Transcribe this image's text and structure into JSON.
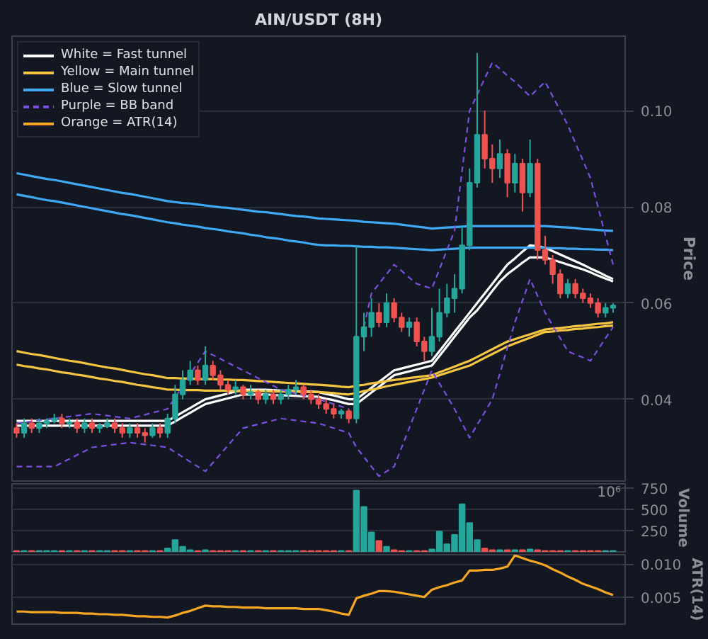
{
  "chart_data": [
    {
      "type": "candlestick",
      "title": "AIN/USDT (8H)",
      "ylabel": "Price",
      "legend": "top left",
      "grid": "y",
      "tick_labels": "y",
      "categories": [
        null,
        null,
        null,
        null,
        null,
        null,
        null,
        null,
        null,
        null,
        null,
        null,
        null,
        null,
        null,
        null,
        null,
        null,
        null,
        null,
        null,
        null,
        null,
        null,
        null,
        null,
        null,
        null,
        null,
        null,
        null,
        null,
        null,
        null,
        null,
        null,
        null,
        null,
        null,
        null,
        null,
        null,
        null,
        null,
        null,
        null,
        null,
        null,
        null,
        null,
        null,
        null,
        null,
        null,
        null,
        null,
        null,
        null,
        null,
        null,
        null,
        null,
        null,
        null,
        null,
        null,
        null,
        null,
        null,
        null,
        null,
        null,
        null,
        null,
        null,
        null,
        null,
        null,
        null,
        null
      ],
      "ylim": [
        0.023,
        0.1155
      ],
      "yticks": [
        0.04,
        0.06,
        0.08,
        {
          "value": 0.1,
          "label": "0.10"
        }
      ],
      "ohlc": [
        [
          0.034,
          0.035,
          0.032,
          0.033
        ],
        [
          0.033,
          0.036,
          0.032,
          0.035
        ],
        [
          0.035,
          0.036,
          0.033,
          0.034
        ],
        [
          0.034,
          0.036,
          0.033,
          0.035
        ],
        [
          0.035,
          0.036,
          0.034,
          0.0355
        ],
        [
          0.0355,
          0.037,
          0.035,
          0.036
        ],
        [
          0.036,
          0.037,
          0.034,
          0.035
        ],
        [
          0.035,
          0.036,
          0.034,
          0.0352
        ],
        [
          0.0352,
          0.036,
          0.033,
          0.034
        ],
        [
          0.034,
          0.036,
          0.033,
          0.035
        ],
        [
          0.035,
          0.036,
          0.033,
          0.034
        ],
        [
          0.034,
          0.035,
          0.033,
          0.0345
        ],
        [
          0.0345,
          0.036,
          0.034,
          0.035
        ],
        [
          0.035,
          0.036,
          0.033,
          0.034
        ],
        [
          0.034,
          0.035,
          0.032,
          0.033
        ],
        [
          0.033,
          0.035,
          0.032,
          0.034
        ],
        [
          0.034,
          0.035,
          0.032,
          0.033
        ],
        [
          0.033,
          0.034,
          0.031,
          0.0325
        ],
        [
          0.0325,
          0.035,
          0.032,
          0.034
        ],
        [
          0.034,
          0.035,
          0.032,
          0.033
        ],
        [
          0.033,
          0.037,
          0.032,
          0.036
        ],
        [
          0.036,
          0.043,
          0.035,
          0.041
        ],
        [
          0.041,
          0.046,
          0.04,
          0.044
        ],
        [
          0.044,
          0.048,
          0.043,
          0.046
        ],
        [
          0.046,
          0.047,
          0.043,
          0.044
        ],
        [
          0.044,
          0.051,
          0.043,
          0.047
        ],
        [
          0.047,
          0.048,
          0.044,
          0.045
        ],
        [
          0.045,
          0.046,
          0.042,
          0.043
        ],
        [
          0.043,
          0.044,
          0.041,
          0.042
        ],
        [
          0.042,
          0.044,
          0.041,
          0.0425
        ],
        [
          0.0425,
          0.043,
          0.04,
          0.041
        ],
        [
          0.041,
          0.043,
          0.04,
          0.0415
        ],
        [
          0.0415,
          0.042,
          0.039,
          0.04
        ],
        [
          0.04,
          0.042,
          0.039,
          0.041
        ],
        [
          0.041,
          0.042,
          0.039,
          0.04
        ],
        [
          0.04,
          0.042,
          0.039,
          0.041
        ],
        [
          0.041,
          0.043,
          0.04,
          0.042
        ],
        [
          0.042,
          0.044,
          0.041,
          0.0425
        ],
        [
          0.0425,
          0.043,
          0.04,
          0.041
        ],
        [
          0.041,
          0.042,
          0.039,
          0.04
        ],
        [
          0.04,
          0.041,
          0.038,
          0.039
        ],
        [
          0.039,
          0.04,
          0.037,
          0.038
        ],
        [
          0.038,
          0.039,
          0.036,
          0.037
        ],
        [
          0.037,
          0.038,
          0.036,
          0.0375
        ],
        [
          0.0375,
          0.038,
          0.035,
          0.036
        ],
        [
          0.036,
          0.072,
          0.035,
          0.053
        ],
        [
          0.053,
          0.058,
          0.05,
          0.055
        ],
        [
          0.055,
          0.061,
          0.053,
          0.058
        ],
        [
          0.058,
          0.06,
          0.055,
          0.056
        ],
        [
          0.056,
          0.062,
          0.055,
          0.06
        ],
        [
          0.06,
          0.061,
          0.056,
          0.057
        ],
        [
          0.057,
          0.058,
          0.054,
          0.055
        ],
        [
          0.055,
          0.057,
          0.053,
          0.056
        ],
        [
          0.056,
          0.057,
          0.051,
          0.052
        ],
        [
          0.052,
          0.053,
          0.048,
          0.05
        ],
        [
          0.05,
          0.059,
          0.049,
          0.053
        ],
        [
          0.053,
          0.063,
          0.052,
          0.058
        ],
        [
          0.058,
          0.064,
          0.057,
          0.061
        ],
        [
          0.061,
          0.066,
          0.058,
          0.063
        ],
        [
          0.063,
          0.076,
          0.062,
          0.072
        ],
        [
          0.072,
          0.088,
          0.071,
          0.085
        ],
        [
          0.085,
          0.112,
          0.084,
          0.095
        ],
        [
          0.095,
          0.1,
          0.088,
          0.09
        ],
        [
          0.09,
          0.093,
          0.085,
          0.088
        ],
        [
          0.088,
          0.094,
          0.086,
          0.091
        ],
        [
          0.091,
          0.092,
          0.082,
          0.085
        ],
        [
          0.085,
          0.091,
          0.083,
          0.089
        ],
        [
          0.089,
          0.09,
          0.079,
          0.083
        ],
        [
          0.083,
          0.094,
          0.082,
          0.089
        ],
        [
          0.089,
          0.09,
          0.069,
          0.071
        ],
        [
          0.071,
          0.074,
          0.068,
          0.069
        ],
        [
          0.069,
          0.07,
          0.064,
          0.066
        ],
        [
          0.066,
          0.067,
          0.061,
          0.062
        ],
        [
          0.062,
          0.065,
          0.061,
          0.064
        ],
        [
          0.064,
          0.065,
          0.061,
          0.062
        ],
        [
          0.062,
          0.063,
          0.06,
          0.061
        ],
        [
          0.061,
          0.062,
          0.059,
          0.06
        ],
        [
          0.06,
          0.061,
          0.057,
          0.058
        ],
        [
          0.058,
          0.06,
          0.057,
          0.059
        ],
        [
          0.059,
          0.06,
          0.058,
          0.0595
        ]
      ],
      "colors": [
        "#ef5350",
        "#26a69a",
        "#ef5350",
        "#26a69a",
        "#26a69a",
        "#26a69a",
        "#ef5350",
        "#26a69a",
        "#ef5350",
        "#26a69a",
        "#ef5350",
        "#26a69a",
        "#26a69a",
        "#ef5350",
        "#ef5350",
        "#26a69a",
        "#ef5350",
        "#ef5350",
        "#26a69a",
        "#ef5350",
        "#26a69a",
        "#26a69a",
        "#26a69a",
        "#26a69a",
        "#ef5350",
        "#26a69a",
        "#ef5350",
        "#ef5350",
        "#ef5350",
        "#26a69a",
        "#ef5350",
        "#26a69a",
        "#ef5350",
        "#26a69a",
        "#ef5350",
        "#26a69a",
        "#26a69a",
        "#26a69a",
        "#ef5350",
        "#ef5350",
        "#ef5350",
        "#ef5350",
        "#ef5350",
        "#26a69a",
        "#ef5350",
        "#26a69a",
        "#26a69a",
        "#26a69a",
        "#ef5350",
        "#26a69a",
        "#ef5350",
        "#ef5350",
        "#26a69a",
        "#ef5350",
        "#ef5350",
        "#26a69a",
        "#26a69a",
        "#26a69a",
        "#26a69a",
        "#26a69a",
        "#26a69a",
        "#26a69a",
        "#ef5350",
        "#ef5350",
        "#26a69a",
        "#ef5350",
        "#26a69a",
        "#ef5350",
        "#26a69a",
        "#ef5350",
        "#ef5350",
        "#ef5350",
        "#ef5350",
        "#26a69a",
        "#ef5350",
        "#ef5350",
        "#ef5350",
        "#ef5350",
        "#26a69a",
        "#26a69a"
      ],
      "series": [
        {
          "type": "line",
          "name": "White = Fast tunnel",
          "color": "#ffffff",
          "line_style": "solid",
          "values": [
            0.0355,
            0.0355,
            0.0355,
            0.0355,
            0.0355,
            0.0355,
            0.0355,
            0.0355,
            0.0355,
            0.0355,
            0.0355,
            0.0355,
            0.0355,
            0.0355,
            0.0355,
            0.0355,
            0.0355,
            0.0355,
            0.0355,
            0.0355,
            0.0355,
            0.0364,
            0.0373,
            0.0382,
            0.0391,
            0.04,
            0.0404,
            0.0408,
            0.0412,
            0.0416,
            0.042,
            0.042,
            0.042,
            0.042,
            0.0419,
            0.0418,
            0.0418,
            0.0417,
            0.0416,
            0.0416,
            0.0415,
            0.0411,
            0.0408,
            0.0404,
            0.04,
            0.04,
            0.0412,
            0.0424,
            0.0436,
            0.0448,
            0.046,
            0.0464,
            0.0468,
            0.0472,
            0.0476,
            0.048,
            0.05,
            0.052,
            0.054,
            0.056,
            0.058,
            0.06,
            0.062,
            0.064,
            0.066,
            0.068,
            0.0693,
            0.0707,
            0.072,
            0.0718,
            0.0715,
            0.0708,
            0.0701,
            0.0694,
            0.0687,
            0.068,
            0.0672,
            0.0665,
            0.0657,
            0.065
          ]
        },
        {
          "type": "line",
          "color": "#ffffff",
          "line_style": "solid",
          "values": [
            0.0345,
            0.0345,
            0.0345,
            0.0345,
            0.0345,
            0.0345,
            0.0345,
            0.0345,
            0.0345,
            0.0345,
            0.0345,
            0.0345,
            0.0345,
            0.0345,
            0.0345,
            0.0345,
            0.0345,
            0.0345,
            0.0345,
            0.0345,
            0.0345,
            0.0354,
            0.0363,
            0.0372,
            0.0381,
            0.039,
            0.0394,
            0.0398,
            0.0402,
            0.0406,
            0.041,
            0.041,
            0.041,
            0.041,
            0.0409,
            0.0408,
            0.0408,
            0.0407,
            0.0406,
            0.0406,
            0.0405,
            0.0401,
            0.0398,
            0.0394,
            0.039,
            0.039,
            0.0402,
            0.0414,
            0.0426,
            0.0438,
            0.045,
            0.0454,
            0.0458,
            0.0462,
            0.0466,
            0.047,
            0.049,
            0.051,
            0.053,
            0.055,
            0.057,
            0.0585,
            0.0605,
            0.0625,
            0.0645,
            0.066,
            0.0672,
            0.0684,
            0.0695,
            0.0695,
            0.0695,
            0.069,
            0.0685,
            0.068,
            0.0675,
            0.067,
            0.0664,
            0.0657,
            0.0651,
            0.0645
          ]
        },
        {
          "type": "line",
          "name": "Yellow = Main tunnel",
          "color": "#f5c542",
          "line_style": "solid",
          "values": [
            0.05,
            0.0497,
            0.0494,
            0.0492,
            0.0489,
            0.0486,
            0.0483,
            0.048,
            0.0478,
            0.0475,
            0.0472,
            0.0469,
            0.0466,
            0.0464,
            0.0461,
            0.0458,
            0.0455,
            0.0452,
            0.045,
            0.0447,
            0.0444,
            0.0444,
            0.0443,
            0.0443,
            0.0442,
            0.0442,
            0.0442,
            0.0441,
            0.0441,
            0.044,
            0.044,
            0.0439,
            0.0438,
            0.0437,
            0.0436,
            0.0435,
            0.0434,
            0.0433,
            0.0432,
            0.0431,
            0.043,
            0.0429,
            0.0428,
            0.0426,
            0.0425,
            0.0428,
            0.043,
            0.0433,
            0.0435,
            0.0438,
            0.044,
            0.0442,
            0.0444,
            0.0446,
            0.0448,
            0.045,
            0.0456,
            0.0462,
            0.0468,
            0.0474,
            0.048,
            0.0488,
            0.0496,
            0.0504,
            0.0512,
            0.052,
            0.0525,
            0.053,
            0.0535,
            0.054,
            0.0545,
            0.0547,
            0.0548,
            0.055,
            0.0552,
            0.0553,
            0.0555,
            0.0557,
            0.0558,
            0.056
          ]
        },
        {
          "type": "line",
          "color": "#f5c542",
          "line_style": "solid",
          "values": [
            0.0472,
            0.0469,
            0.0467,
            0.0464,
            0.0462,
            0.0459,
            0.0456,
            0.0454,
            0.0451,
            0.0449,
            0.0446,
            0.0443,
            0.0441,
            0.0438,
            0.0436,
            0.0433,
            0.043,
            0.0428,
            0.0425,
            0.0423,
            0.042,
            0.042,
            0.0419,
            0.0419,
            0.0419,
            0.0418,
            0.0418,
            0.0418,
            0.0418,
            0.0417,
            0.0417,
            0.0417,
            0.0417,
            0.0417,
            0.0416,
            0.0416,
            0.0416,
            0.0416,
            0.0415,
            0.0415,
            0.0415,
            0.0414,
            0.0413,
            0.0411,
            0.041,
            0.0413,
            0.0417,
            0.042,
            0.0423,
            0.0427,
            0.043,
            0.0433,
            0.0436,
            0.0439,
            0.0442,
            0.0445,
            0.045,
            0.0455,
            0.046,
            0.0465,
            0.047,
            0.0478,
            0.0486,
            0.0494,
            0.0502,
            0.051,
            0.0516,
            0.0522,
            0.0528,
            0.0534,
            0.054,
            0.0541,
            0.0543,
            0.0544,
            0.0546,
            0.0547,
            0.0549,
            0.055,
            0.0552,
            0.0553
          ]
        },
        {
          "type": "line",
          "name": "Blue = Slow tunnel",
          "color": "#3fa9f5",
          "line_style": "solid",
          "values": [
            0.087,
            0.0867,
            0.0864,
            0.0861,
            0.0858,
            0.0856,
            0.0853,
            0.085,
            0.0847,
            0.0844,
            0.0841,
            0.0838,
            0.0835,
            0.0832,
            0.0829,
            0.0827,
            0.0824,
            0.0821,
            0.0818,
            0.0815,
            0.0812,
            0.081,
            0.0808,
            0.0807,
            0.0805,
            0.0803,
            0.0801,
            0.0799,
            0.0798,
            0.0796,
            0.0794,
            0.0792,
            0.079,
            0.0789,
            0.0787,
            0.0785,
            0.0783,
            0.0781,
            0.078,
            0.0778,
            0.0776,
            0.0775,
            0.0774,
            0.0773,
            0.0772,
            0.0771,
            0.0769,
            0.0768,
            0.0767,
            0.0766,
            0.0765,
            0.0763,
            0.0761,
            0.0759,
            0.0757,
            0.0755,
            0.0756,
            0.0757,
            0.0758,
            0.0759,
            0.076,
            0.076,
            0.076,
            0.076,
            0.076,
            0.076,
            0.076,
            0.076,
            0.076,
            0.076,
            0.076,
            0.0759,
            0.0758,
            0.0757,
            0.0756,
            0.0754,
            0.0753,
            0.0752,
            0.0751,
            0.075
          ]
        },
        {
          "type": "line",
          "color": "#3fa9f5",
          "line_style": "solid",
          "values": [
            0.0826,
            0.0823,
            0.082,
            0.0817,
            0.0814,
            0.0812,
            0.0809,
            0.0806,
            0.0803,
            0.08,
            0.0797,
            0.0794,
            0.0791,
            0.0788,
            0.0785,
            0.0783,
            0.078,
            0.0777,
            0.0774,
            0.0771,
            0.0768,
            0.0766,
            0.0763,
            0.0761,
            0.0759,
            0.0756,
            0.0754,
            0.0752,
            0.0749,
            0.0747,
            0.0745,
            0.0742,
            0.074,
            0.0737,
            0.0735,
            0.0733,
            0.073,
            0.0728,
            0.0726,
            0.0723,
            0.0721,
            0.072,
            0.072,
            0.0719,
            0.0719,
            0.0718,
            0.0717,
            0.0717,
            0.0716,
            0.0716,
            0.0715,
            0.0714,
            0.0713,
            0.0712,
            0.0711,
            0.071,
            0.0711,
            0.0712,
            0.0713,
            0.0714,
            0.0715,
            0.0715,
            0.0715,
            0.0715,
            0.0715,
            0.0715,
            0.0715,
            0.0715,
            0.0715,
            0.0715,
            0.0715,
            0.0714,
            0.0714,
            0.0713,
            0.0713,
            0.0712,
            0.0712,
            0.0711,
            0.0711,
            0.071
          ]
        },
        {
          "type": "line",
          "name": "Purple = BB band",
          "color": "#7b4fe0",
          "line_style": "dashed",
          "values": [
            0.035,
            0.0352,
            0.0354,
            0.0356,
            0.0358,
            0.036,
            0.0362,
            0.0364,
            0.0366,
            0.0368,
            0.037,
            0.0368,
            0.0366,
            0.0364,
            0.0362,
            0.036,
            0.0364,
            0.0368,
            0.0372,
            0.0376,
            0.038,
            0.0404,
            0.0428,
            0.0452,
            0.0476,
            0.05,
            0.0492,
            0.0484,
            0.0476,
            0.0468,
            0.046,
            0.0452,
            0.0444,
            0.0436,
            0.0428,
            0.042,
            0.0416,
            0.0412,
            0.0408,
            0.0404,
            0.04,
            0.0395,
            0.039,
            0.0385,
            0.038,
            null,
            0.055,
            0.062,
            0.064,
            0.066,
            0.068,
            0.0667,
            0.0653,
            0.064,
            0.0635,
            0.063,
            0.067,
            0.071,
            0.075,
            0.0875,
            0.1,
            0.1033,
            0.1067,
            0.11,
            0.1087,
            0.1073,
            0.106,
            0.1045,
            0.103,
            0.1045,
            0.106,
            0.103,
            0.1,
            0.097,
            0.0933,
            0.0897,
            0.086,
            0.08,
            0.074,
            0.068
          ]
        },
        {
          "type": "line",
          "color": "#7b4fe0",
          "line_style": "dashed",
          "values": [
            0.026,
            0.026,
            0.026,
            0.026,
            0.026,
            0.026,
            0.0268,
            0.0276,
            0.0284,
            0.0292,
            0.03,
            0.0302,
            0.0304,
            0.0306,
            0.0308,
            0.031,
            0.0308,
            0.0306,
            0.0304,
            0.0302,
            0.03,
            0.029,
            0.028,
            0.027,
            0.026,
            0.025,
            0.0268,
            0.0286,
            0.0304,
            0.0322,
            0.034,
            0.0344,
            0.0348,
            0.0352,
            0.0356,
            0.036,
            0.0358,
            0.0356,
            0.0354,
            0.0352,
            0.035,
            0.0345,
            0.034,
            0.0335,
            0.033,
            0.03,
            0.028,
            0.026,
            0.024,
            0.025,
            0.026,
            0.03,
            0.034,
            0.038,
            0.042,
            0.046,
            0.0433,
            0.0407,
            0.038,
            0.035,
            0.032,
            0.0347,
            0.0373,
            0.04,
            0.0453,
            0.0507,
            0.056,
            0.0605,
            0.065,
            0.0615,
            0.058,
            0.0553,
            0.0527,
            0.05,
            0.0493,
            0.0487,
            0.048,
            0.0503,
            0.0527,
            0.055
          ]
        }
      ]
    },
    {
      "type": "bar",
      "ylabel": "Volume",
      "annotations": [
        "10⁶"
      ],
      "grid": "y",
      "tick_labels": "y",
      "categories": [
        null,
        null,
        null,
        null,
        null,
        null,
        null,
        null,
        null,
        null,
        null,
        null,
        null,
        null,
        null,
        null,
        null,
        null,
        null,
        null,
        null,
        null,
        null,
        null,
        null,
        null,
        null,
        null,
        null,
        null,
        null,
        null,
        null,
        null,
        null,
        null,
        null,
        null,
        null,
        null,
        null,
        null,
        null,
        null,
        null,
        null,
        null,
        null,
        null,
        null,
        null,
        null,
        null,
        null,
        null,
        null,
        null,
        null,
        null,
        null,
        null,
        null,
        null,
        null,
        null,
        null,
        null,
        null,
        null,
        null,
        null,
        null,
        null,
        null,
        null,
        null,
        null,
        null,
        null,
        null
      ],
      "ylim": [
        0,
        800
      ],
      "yticks": [
        250,
        500,
        750
      ],
      "values": [
        10,
        10,
        10,
        10,
        10,
        10,
        10,
        10,
        10,
        10,
        10,
        10,
        10,
        10,
        10,
        10,
        10,
        10,
        10,
        10,
        40,
        140,
        60,
        20,
        10,
        20,
        10,
        10,
        10,
        10,
        10,
        10,
        10,
        10,
        10,
        10,
        10,
        10,
        10,
        10,
        10,
        10,
        10,
        10,
        10,
        720,
        530,
        230,
        130,
        60,
        20,
        10,
        10,
        10,
        10,
        30,
        240,
        90,
        200,
        560,
        340,
        140,
        40,
        20,
        20,
        20,
        20,
        20,
        30,
        20,
        10,
        10,
        10,
        10,
        10,
        10,
        10,
        10,
        10,
        10
      ],
      "colors": [
        "#ef5350",
        "#26a69a",
        "#ef5350",
        "#26a69a",
        "#26a69a",
        "#26a69a",
        "#ef5350",
        "#26a69a",
        "#ef5350",
        "#26a69a",
        "#ef5350",
        "#26a69a",
        "#26a69a",
        "#ef5350",
        "#ef5350",
        "#26a69a",
        "#ef5350",
        "#ef5350",
        "#26a69a",
        "#ef5350",
        "#26a69a",
        "#26a69a",
        "#26a69a",
        "#26a69a",
        "#ef5350",
        "#26a69a",
        "#ef5350",
        "#ef5350",
        "#ef5350",
        "#26a69a",
        "#ef5350",
        "#26a69a",
        "#ef5350",
        "#26a69a",
        "#ef5350",
        "#26a69a",
        "#26a69a",
        "#26a69a",
        "#ef5350",
        "#ef5350",
        "#ef5350",
        "#ef5350",
        "#ef5350",
        "#26a69a",
        "#ef5350",
        "#26a69a",
        "#26a69a",
        "#26a69a",
        "#ef5350",
        "#26a69a",
        "#ef5350",
        "#ef5350",
        "#26a69a",
        "#ef5350",
        "#ef5350",
        "#26a69a",
        "#26a69a",
        "#26a69a",
        "#26a69a",
        "#26a69a",
        "#26a69a",
        "#26a69a",
        "#ef5350",
        "#ef5350",
        "#26a69a",
        "#ef5350",
        "#26a69a",
        "#ef5350",
        "#26a69a",
        "#ef5350",
        "#ef5350",
        "#ef5350",
        "#ef5350",
        "#26a69a",
        "#ef5350",
        "#ef5350",
        "#ef5350",
        "#ef5350",
        "#26a69a",
        "#26a69a"
      ]
    },
    {
      "type": "line",
      "ylabel": "ATR(14)",
      "grid": "y",
      "tick_labels": "y",
      "categories": [
        null,
        null,
        null,
        null,
        null,
        null,
        null,
        null,
        null,
        null,
        null,
        null,
        null,
        null,
        null,
        null,
        null,
        null,
        null,
        null,
        null,
        null,
        null,
        null,
        null,
        null,
        null,
        null,
        null,
        null,
        null,
        null,
        null,
        null,
        null,
        null,
        null,
        null,
        null,
        null,
        null,
        null,
        null,
        null,
        null,
        null,
        null,
        null,
        null,
        null,
        null,
        null,
        null,
        null,
        null,
        null,
        null,
        null,
        null,
        null,
        null,
        null,
        null,
        null,
        null,
        null,
        null,
        null,
        null,
        null,
        null,
        null,
        null,
        null,
        null,
        null,
        null,
        null,
        null,
        null
      ],
      "ylim": [
        0.0009,
        0.0114
      ],
      "yticks": [
        0.005,
        {
          "value": 0.01,
          "label": "0.010"
        }
      ],
      "series": [
        {
          "type": "line",
          "name": "Orange = ATR(14)",
          "color": "#f5a623",
          "values": [
            0.0028,
            0.0028,
            0.0027,
            0.0027,
            0.0027,
            0.0027,
            0.0026,
            0.0026,
            0.0026,
            0.0025,
            0.0025,
            0.0024,
            0.0024,
            0.0023,
            0.0023,
            0.0022,
            0.0021,
            0.0021,
            0.002,
            0.002,
            0.0019,
            0.0022,
            0.0026,
            0.0029,
            0.0033,
            0.0037,
            0.0036,
            0.0036,
            0.0035,
            0.0035,
            0.0034,
            0.0034,
            0.0034,
            0.0033,
            0.0033,
            0.0033,
            0.0033,
            0.0033,
            0.0032,
            0.0032,
            0.0032,
            0.003,
            0.0028,
            0.0025,
            0.0023,
            0.0048,
            0.0052,
            0.0055,
            0.0059,
            0.0059,
            0.0058,
            0.0056,
            0.0054,
            0.0052,
            0.005,
            0.0061,
            0.0065,
            0.0068,
            0.0072,
            0.0075,
            0.009,
            0.009,
            0.0091,
            0.0091,
            0.0093,
            0.0096,
            0.0113,
            0.0109,
            0.0105,
            0.0102,
            0.0098,
            0.0092,
            0.0087,
            0.0081,
            0.0076,
            0.007,
            0.0066,
            0.0062,
            0.0057,
            0.0053
          ]
        }
      ]
    }
  ]
}
